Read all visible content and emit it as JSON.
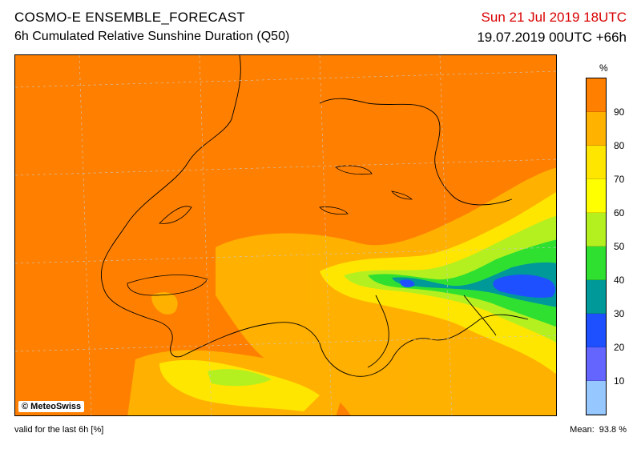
{
  "header": {
    "title_line1": "COSMO-E ENSEMBLE_FORECAST",
    "title_line2": "6h Cumulated Relative Sunshine Duration (Q50)",
    "valid_time": "Sun 21 Jul 2019 18UTC",
    "run_time": "19.07.2019 00UTC +66h"
  },
  "map": {
    "credit": "© MeteoSwiss",
    "background_color": "#ff8000"
  },
  "legend": {
    "unit": "%",
    "ticks": [
      "90",
      "80",
      "70",
      "60",
      "50",
      "40",
      "30",
      "20",
      "10"
    ],
    "colors": [
      "#ff8000",
      "#ffb300",
      "#ffe600",
      "#ffff00",
      "#b4f020",
      "#30e030",
      "#10b040",
      "#009999",
      "#1e50ff",
      "#6464ff",
      "#96c8ff"
    ]
  },
  "footer": {
    "valid_note": "valid for the last 6h [%]",
    "mean_label": "Mean:",
    "mean_value": "93.8 %"
  }
}
